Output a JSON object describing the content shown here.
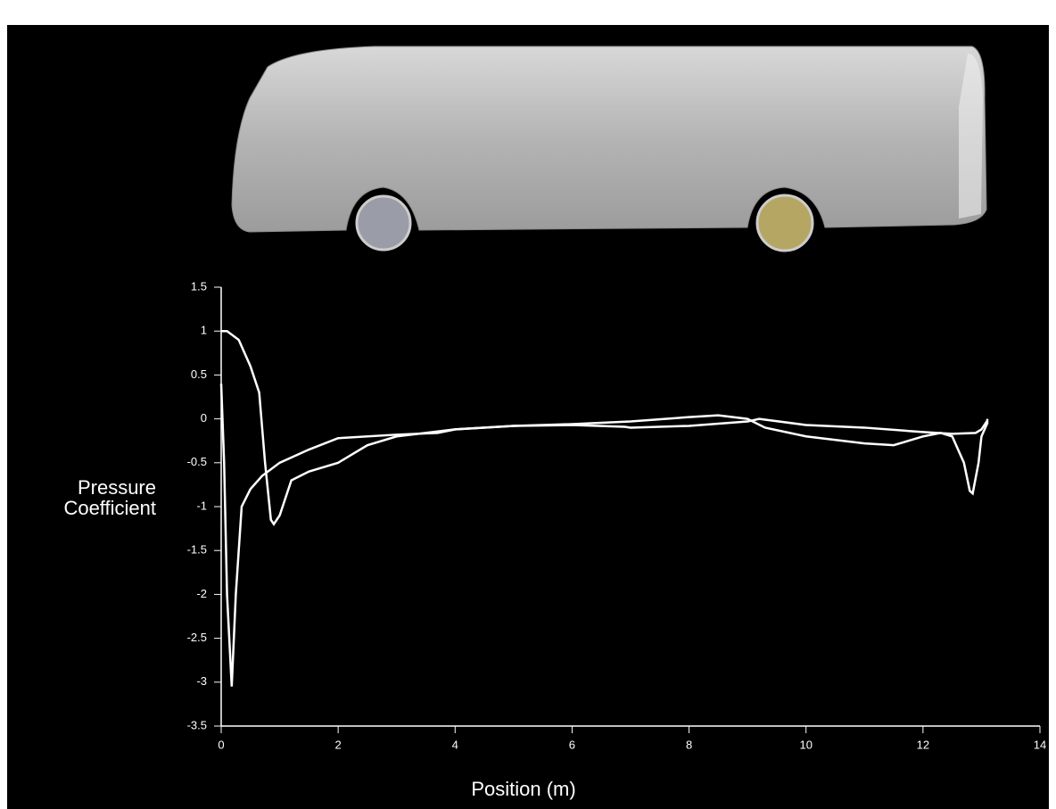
{
  "chart_data": {
    "type": "line",
    "x_label": "Position (m)",
    "y_label": "Pressure Coefficient",
    "xlim": [
      0,
      14
    ],
    "xticks": [
      0,
      2,
      4,
      6,
      8,
      10,
      12,
      14
    ],
    "ylim": [
      -3.5,
      1.5
    ],
    "yticks": [
      -3.5,
      -3,
      -2.5,
      -2,
      -1.5,
      -1,
      -0.5,
      0,
      0.5,
      1,
      1.5
    ],
    "series": [
      {
        "color": "#ffffff",
        "x": [
          0,
          0.1,
          0.3,
          0.5,
          0.65,
          0.75,
          0.85,
          0.9,
          1.0,
          1.2,
          1.5,
          2.0,
          2.5,
          3,
          4,
          5,
          6,
          7,
          8,
          8.5,
          9,
          9.3,
          10,
          11,
          11.5,
          12,
          12.3,
          12.5,
          12.7,
          12.8,
          12.85,
          12.95,
          13.0,
          13.1,
          13.1
        ],
        "values": [
          1.0,
          1.0,
          0.9,
          0.6,
          0.3,
          -0.5,
          -1.15,
          -1.2,
          -1.1,
          -0.7,
          -0.6,
          -0.5,
          -0.3,
          -0.2,
          -0.12,
          -0.08,
          -0.06,
          -0.03,
          0.02,
          0.04,
          0.0,
          -0.1,
          -0.2,
          -0.28,
          -0.3,
          -0.2,
          -0.16,
          -0.2,
          -0.5,
          -0.82,
          -0.85,
          -0.5,
          -0.2,
          -0.05,
          0.0
        ]
      },
      {
        "color": "#ffffff",
        "x": [
          0.0,
          0.05,
          0.1,
          0.18,
          0.25,
          0.35,
          0.5,
          0.7,
          1,
          1.5,
          2,
          3,
          3.7,
          4,
          5,
          6,
          6.9,
          7,
          8,
          9,
          9.2,
          10,
          11,
          12,
          12.5,
          12.9,
          13.0,
          13.1
        ],
        "values": [
          0.4,
          -0.5,
          -2.0,
          -3.05,
          -2.0,
          -1.0,
          -0.8,
          -0.65,
          -0.5,
          -0.35,
          -0.22,
          -0.18,
          -0.16,
          -0.12,
          -0.08,
          -0.07,
          -0.09,
          -0.1,
          -0.08,
          -0.03,
          0.0,
          -0.07,
          -0.1,
          -0.15,
          -0.17,
          -0.16,
          -0.12,
          -0.02
        ]
      }
    ]
  }
}
